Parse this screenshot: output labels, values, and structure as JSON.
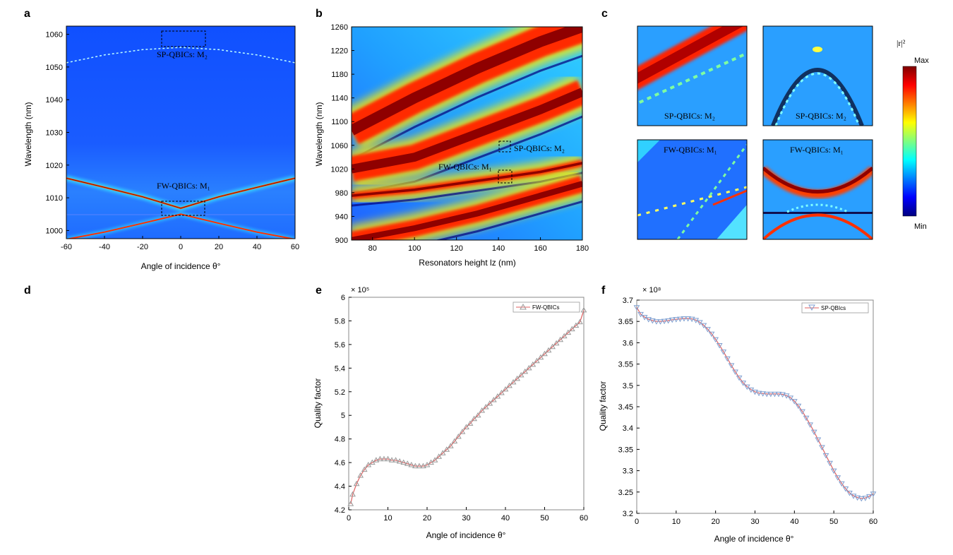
{
  "panel_letters": {
    "a": "a",
    "b": "b",
    "c": "c",
    "d": "d",
    "e": "e",
    "f": "f"
  },
  "colorbar": {
    "title": "|r|²",
    "max_label": "Max",
    "min_label": "Min",
    "colormap": [
      "#00007f",
      "#0000ff",
      "#007fff",
      "#00ffff",
      "#7fff7f",
      "#ffff00",
      "#ff7f00",
      "#ff0000",
      "#7f0000"
    ]
  },
  "chart_data": [
    {
      "id": "a",
      "type": "heatmap",
      "xlabel": "Angle of incidence θ°",
      "ylabel": "Wavelength (nm)",
      "xlim": [
        -60,
        60
      ],
      "ylim": [
        997.5,
        1062.5
      ],
      "xticks": [
        -60,
        -40,
        -20,
        0,
        20,
        40,
        60
      ],
      "yticks": [
        1000,
        1010,
        1020,
        1030,
        1040,
        1050,
        1060
      ],
      "annotations": [
        "SP-QBICs: M₂",
        "FW-QBICs: M₁"
      ],
      "curves": [
        {
          "name": "SP branch",
          "x": [
            -60,
            -40,
            -20,
            0,
            20,
            40,
            60
          ],
          "y": [
            1051.3,
            1053.7,
            1055.3,
            1056.0,
            1055.3,
            1053.7,
            1051.3
          ]
        },
        {
          "name": "FW upper branch",
          "x": [
            -60,
            -40,
            -20,
            0,
            20,
            40,
            60
          ],
          "y": [
            1016.0,
            1013.2,
            1010.3,
            1006.8,
            1010.3,
            1013.2,
            1016.0
          ]
        },
        {
          "name": "FW lower branch",
          "x": [
            -60,
            -40,
            -20,
            0,
            20,
            40,
            60
          ],
          "y": [
            997.3,
            999.5,
            1002.2,
            1005.0,
            1002.2,
            999.5,
            997.3
          ]
        }
      ]
    },
    {
      "id": "b",
      "type": "heatmap",
      "xlabel": "Resonators height lz (nm)",
      "ylabel": "Wavelength (nm)",
      "xlim": [
        70,
        180
      ],
      "ylim": [
        900,
        1260
      ],
      "xticks": [
        80,
        100,
        120,
        140,
        160,
        180
      ],
      "yticks": [
        900,
        940,
        980,
        1020,
        1060,
        1100,
        1140,
        1180,
        1220,
        1260
      ],
      "annotations": [
        "SP-QBICs: M₂",
        "FW-QBICs: M₁"
      ],
      "bands": [
        {
          "x": [
            70,
            100,
            130,
            160,
            180
          ],
          "y": [
            1085,
            1140,
            1190,
            1235,
            1260
          ]
        },
        {
          "x": [
            70,
            100,
            130,
            160,
            180
          ],
          "y": [
            1020,
            1040,
            1080,
            1120,
            1150
          ]
        },
        {
          "x": [
            70,
            100,
            130,
            160,
            180
          ],
          "y": [
            975,
            985,
            1000,
            1015,
            1030
          ]
        },
        {
          "x": [
            70,
            100,
            130,
            160,
            180
          ],
          "y": [
            900,
            920,
            945,
            975,
            995
          ]
        }
      ]
    },
    {
      "id": "e",
      "type": "line",
      "xlabel": "Angle of incidence θ°",
      "ylabel": "Quality factor",
      "scale_label": "× 10⁵",
      "xlim": [
        0,
        60
      ],
      "ylim": [
        4.2,
        6.0
      ],
      "xticks": [
        0,
        10,
        20,
        30,
        40,
        50,
        60
      ],
      "yticks": [
        4.2,
        4.4,
        4.6,
        4.8,
        5.0,
        5.2,
        5.4,
        5.6,
        5.8,
        6.0
      ],
      "legend": "top-right",
      "series": [
        {
          "name": "FW-QBICs",
          "color": "#e06060",
          "marker_color": "#999999",
          "x": [
            0.5,
            1,
            2,
            3,
            4,
            5,
            6,
            7,
            8,
            9,
            10,
            11,
            12,
            13,
            14,
            15,
            16,
            17,
            18,
            19,
            20,
            21,
            22,
            23,
            24,
            25,
            26,
            27,
            28,
            29,
            30,
            31,
            32,
            33,
            34,
            35,
            36,
            37,
            38,
            39,
            40,
            41,
            42,
            43,
            44,
            45,
            46,
            47,
            48,
            49,
            50,
            51,
            52,
            53,
            54,
            55,
            56,
            57,
            58,
            59,
            60
          ],
          "y": [
            4.25,
            4.33,
            4.42,
            4.49,
            4.54,
            4.58,
            4.6,
            4.62,
            4.63,
            4.63,
            4.63,
            4.62,
            4.62,
            4.61,
            4.6,
            4.59,
            4.58,
            4.57,
            4.57,
            4.57,
            4.58,
            4.6,
            4.62,
            4.65,
            4.68,
            4.71,
            4.74,
            4.78,
            4.82,
            4.86,
            4.9,
            4.93,
            4.97,
            5.0,
            5.04,
            5.07,
            5.1,
            5.13,
            5.16,
            5.19,
            5.22,
            5.25,
            5.28,
            5.31,
            5.34,
            5.37,
            5.4,
            5.43,
            5.46,
            5.49,
            5.52,
            5.55,
            5.58,
            5.61,
            5.64,
            5.67,
            5.7,
            5.73,
            5.76,
            5.79,
            5.89
          ]
        }
      ]
    },
    {
      "id": "f",
      "type": "line",
      "xlabel": "Angle of incidence θ°",
      "ylabel": "Quality factor",
      "scale_label": "× 10⁸",
      "xlim": [
        0,
        60
      ],
      "ylim": [
        3.2,
        3.7
      ],
      "xticks": [
        0,
        10,
        20,
        30,
        40,
        50,
        60
      ],
      "yticks": [
        3.2,
        3.25,
        3.3,
        3.35,
        3.4,
        3.45,
        3.5,
        3.55,
        3.6,
        3.65,
        3.7
      ],
      "legend": "top-right",
      "series": [
        {
          "name": "SP-QBIcs",
          "color": "#e06060",
          "marker_color": "#7f9fd0",
          "x": [
            0,
            1,
            2,
            3,
            4,
            5,
            6,
            7,
            8,
            9,
            10,
            11,
            12,
            13,
            14,
            15,
            16,
            17,
            18,
            19,
            20,
            21,
            22,
            23,
            24,
            25,
            26,
            27,
            28,
            29,
            30,
            31,
            32,
            33,
            34,
            35,
            36,
            37,
            38,
            39,
            40,
            41,
            42,
            43,
            44,
            45,
            46,
            47,
            48,
            49,
            50,
            51,
            52,
            53,
            54,
            55,
            56,
            57,
            58,
            59,
            60
          ],
          "y": [
            3.683,
            3.667,
            3.66,
            3.655,
            3.652,
            3.65,
            3.65,
            3.651,
            3.652,
            3.654,
            3.655,
            3.656,
            3.657,
            3.657,
            3.656,
            3.653,
            3.648,
            3.641,
            3.632,
            3.621,
            3.608,
            3.594,
            3.579,
            3.563,
            3.547,
            3.532,
            3.518,
            3.506,
            3.497,
            3.49,
            3.485,
            3.482,
            3.481,
            3.48,
            3.48,
            3.48,
            3.48,
            3.479,
            3.476,
            3.471,
            3.463,
            3.452,
            3.439,
            3.424,
            3.408,
            3.391,
            3.373,
            3.355,
            3.336,
            3.318,
            3.3,
            3.284,
            3.27,
            3.258,
            3.248,
            3.241,
            3.237,
            3.235,
            3.236,
            3.24,
            3.246
          ]
        }
      ]
    }
  ]
}
